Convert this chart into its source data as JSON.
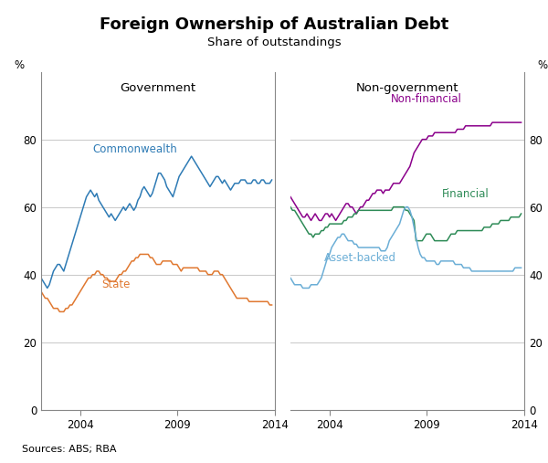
{
  "title": "Foreign Ownership of Australian Debt",
  "subtitle": "Share of outstandings",
  "source": "Sources: ABS; RBA",
  "left_panel_title": "Government",
  "right_panel_title": "Non-government",
  "ylabel_left": "%",
  "ylabel_right": "%",
  "ylim": [
    0,
    100
  ],
  "yticks": [
    0,
    20,
    40,
    60,
    80
  ],
  "colors": {
    "commonwealth": "#2E7BB5",
    "state": "#E07830",
    "nonfinancial": "#8B008B",
    "financial": "#2E8B57",
    "assetbacked": "#6BAED6"
  },
  "commonwealth_data": [
    39,
    38,
    37,
    36,
    37,
    39,
    41,
    42,
    43,
    43,
    42,
    41,
    43,
    45,
    47,
    49,
    51,
    53,
    55,
    57,
    59,
    61,
    63,
    64,
    65,
    64,
    63,
    64,
    62,
    61,
    60,
    59,
    58,
    57,
    58,
    57,
    56,
    57,
    58,
    59,
    60,
    59,
    60,
    61,
    60,
    59,
    60,
    62,
    63,
    65,
    66,
    65,
    64,
    63,
    64,
    66,
    68,
    70,
    70,
    69,
    68,
    66,
    65,
    64,
    63,
    65,
    67,
    69,
    70,
    71,
    72,
    73,
    74,
    75,
    74,
    73,
    72,
    71,
    70,
    69,
    68,
    67,
    66,
    67,
    68,
    69,
    69,
    68,
    67,
    68,
    67,
    66,
    65,
    66,
    67,
    67,
    67,
    68,
    68,
    68,
    67,
    67,
    67,
    68,
    68,
    67,
    67,
    68,
    68,
    67,
    67,
    67,
    68
  ],
  "state_data": [
    35,
    34,
    33,
    33,
    32,
    31,
    30,
    30,
    30,
    29,
    29,
    29,
    30,
    30,
    31,
    31,
    32,
    33,
    34,
    35,
    36,
    37,
    38,
    39,
    39,
    40,
    40,
    41,
    41,
    40,
    40,
    39,
    39,
    38,
    38,
    38,
    38,
    39,
    40,
    40,
    41,
    41,
    42,
    43,
    44,
    44,
    45,
    45,
    46,
    46,
    46,
    46,
    46,
    45,
    45,
    44,
    43,
    43,
    43,
    44,
    44,
    44,
    44,
    44,
    43,
    43,
    43,
    42,
    41,
    42,
    42,
    42,
    42,
    42,
    42,
    42,
    42,
    41,
    41,
    41,
    41,
    40,
    40,
    40,
    41,
    41,
    41,
    40,
    40,
    39,
    38,
    37,
    36,
    35,
    34,
    33,
    33,
    33,
    33,
    33,
    33,
    32,
    32,
    32,
    32,
    32,
    32,
    32,
    32,
    32,
    32,
    31,
    31
  ],
  "nonfinancial_data": [
    63,
    62,
    61,
    60,
    59,
    58,
    57,
    57,
    58,
    57,
    56,
    57,
    58,
    57,
    56,
    56,
    57,
    58,
    58,
    57,
    58,
    57,
    56,
    57,
    58,
    59,
    60,
    61,
    61,
    60,
    60,
    59,
    58,
    59,
    60,
    60,
    61,
    62,
    62,
    63,
    64,
    64,
    65,
    65,
    65,
    64,
    65,
    65,
    65,
    66,
    67,
    67,
    67,
    67,
    68,
    69,
    70,
    71,
    72,
    74,
    76,
    77,
    78,
    79,
    80,
    80,
    80,
    81,
    81,
    81,
    82,
    82,
    82,
    82,
    82,
    82,
    82,
    82,
    82,
    82,
    82,
    83,
    83,
    83,
    83,
    84,
    84,
    84,
    84,
    84,
    84,
    84,
    84,
    84,
    84,
    84,
    84,
    84,
    85,
    85,
    85,
    85,
    85,
    85,
    85,
    85,
    85,
    85,
    85,
    85,
    85,
    85,
    85
  ],
  "financial_data": [
    60,
    59,
    59,
    58,
    57,
    56,
    55,
    54,
    53,
    52,
    52,
    51,
    52,
    52,
    52,
    53,
    53,
    54,
    54,
    55,
    55,
    55,
    55,
    55,
    55,
    55,
    56,
    56,
    57,
    57,
    57,
    58,
    58,
    59,
    59,
    59,
    59,
    59,
    59,
    59,
    59,
    59,
    59,
    59,
    59,
    59,
    59,
    59,
    59,
    59,
    60,
    60,
    60,
    60,
    60,
    60,
    59,
    59,
    58,
    57,
    56,
    50,
    50,
    50,
    50,
    51,
    52,
    52,
    52,
    51,
    50,
    50,
    50,
    50,
    50,
    50,
    50,
    51,
    52,
    52,
    52,
    53,
    53,
    53,
    53,
    53,
    53,
    53,
    53,
    53,
    53,
    53,
    53,
    53,
    54,
    54,
    54,
    54,
    55,
    55,
    55,
    55,
    56,
    56,
    56,
    56,
    56,
    57,
    57,
    57,
    57,
    57,
    58
  ],
  "assetbacked_data": [
    39,
    38,
    37,
    37,
    37,
    37,
    36,
    36,
    36,
    36,
    37,
    37,
    37,
    37,
    38,
    39,
    41,
    43,
    45,
    46,
    48,
    49,
    50,
    51,
    51,
    52,
    52,
    51,
    50,
    50,
    50,
    49,
    49,
    48,
    48,
    48,
    48,
    48,
    48,
    48,
    48,
    48,
    48,
    48,
    47,
    47,
    47,
    48,
    50,
    51,
    52,
    53,
    54,
    55,
    57,
    59,
    60,
    60,
    59,
    57,
    54,
    51,
    48,
    46,
    45,
    45,
    44,
    44,
    44,
    44,
    44,
    43,
    43,
    44,
    44,
    44,
    44,
    44,
    44,
    44,
    43,
    43,
    43,
    43,
    42,
    42,
    42,
    42,
    41,
    41,
    41,
    41,
    41,
    41,
    41,
    41,
    41,
    41,
    41,
    41,
    41,
    41,
    41,
    41,
    41,
    41,
    41,
    41,
    41,
    42,
    42,
    42,
    42
  ]
}
